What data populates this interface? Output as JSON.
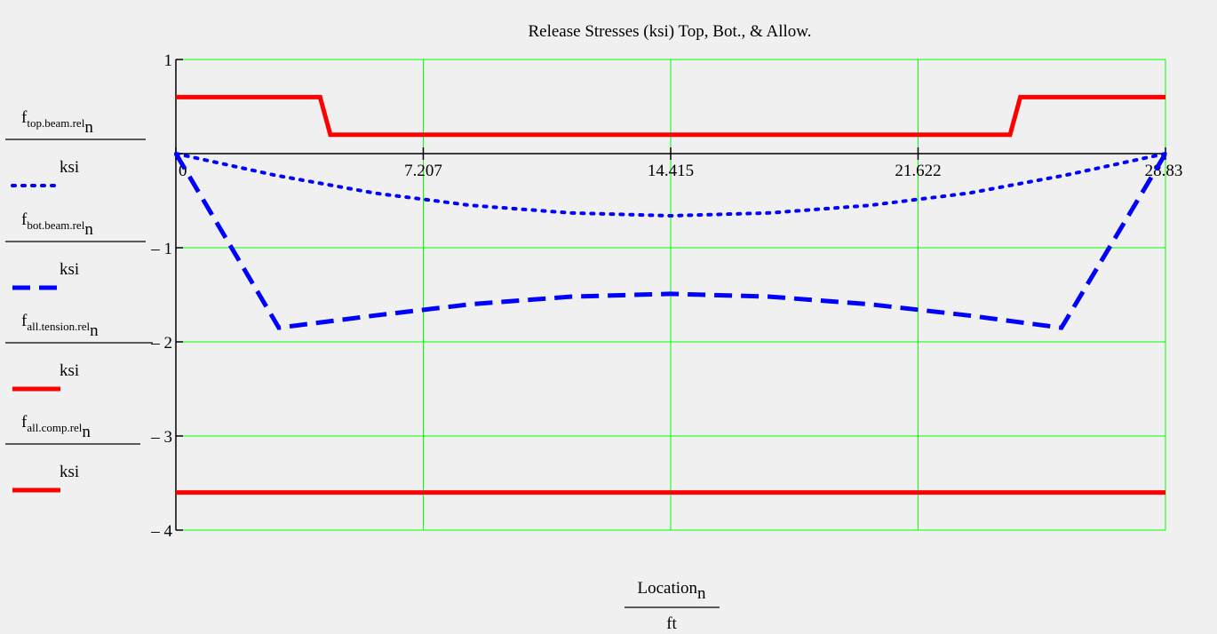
{
  "chart_data": {
    "type": "line",
    "title": "Release Stresses (ksi) Top, Bot., & Allow.",
    "xlabel": {
      "main": "Location",
      "sub": "n",
      "unit": "ft"
    },
    "xlim": [
      0,
      28.83
    ],
    "ylim": [
      -4,
      1
    ],
    "grid": true,
    "grid_color": "#00ff00",
    "x_ticks": [
      "0",
      "7.207",
      "14.415",
      "21.622",
      "28.83"
    ],
    "x_tick_values": [
      0,
      7.207,
      14.415,
      21.622,
      28.83
    ],
    "y_ticks": [
      "1",
      "– 1",
      "– 2",
      "– 3",
      "– 4"
    ],
    "y_tick_values": [
      1,
      -1,
      -2,
      -3,
      -4
    ],
    "series": [
      {
        "name": {
          "main": "f",
          "sub": "top.beam.rel",
          "subn": "n",
          "unit": "ksi"
        },
        "color": "#0000ff",
        "style": "dotted",
        "x": [
          0,
          2.9,
          5.8,
          8.6,
          11.5,
          14.4,
          17.3,
          20.2,
          23.1,
          25.9,
          28.83
        ],
        "y": [
          0,
          -0.23,
          -0.42,
          -0.55,
          -0.63,
          -0.66,
          -0.63,
          -0.55,
          -0.42,
          -0.23,
          0
        ]
      },
      {
        "name": {
          "main": "f",
          "sub": "bot.beam.rel",
          "subn": "n",
          "unit": "ksi"
        },
        "color": "#0000ff",
        "style": "dashed",
        "x": [
          0,
          3.0,
          5.8,
          8.6,
          11.5,
          14.4,
          17.3,
          20.2,
          23.1,
          25.8,
          28.83
        ],
        "y": [
          0,
          -1.85,
          -1.72,
          -1.6,
          -1.52,
          -1.49,
          -1.52,
          -1.6,
          -1.72,
          -1.85,
          0
        ]
      },
      {
        "name": {
          "main": "f",
          "sub": "all.tension.rel",
          "subn": "n",
          "unit": "ksi"
        },
        "color": "#ff0000",
        "style": "solid",
        "x": [
          0,
          4.2,
          4.5,
          24.3,
          24.6,
          28.83
        ],
        "y": [
          0.6,
          0.6,
          0.2,
          0.2,
          0.6,
          0.6
        ]
      },
      {
        "name": {
          "main": "f",
          "sub": "all.comp.rel",
          "subn": "n",
          "unit": "ksi"
        },
        "color": "#ff0000",
        "style": "solid",
        "x": [
          0,
          28.83
        ],
        "y": [
          -3.6,
          -3.6
        ]
      }
    ]
  }
}
